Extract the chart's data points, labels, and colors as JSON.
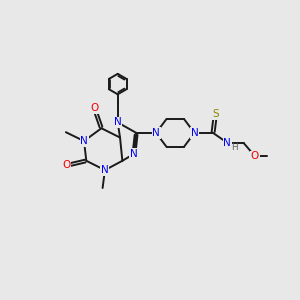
{
  "bg_color": "#e8e8e8",
  "bond_color": "#1a1a1a",
  "N_color": "#0000ee",
  "O_color": "#ee0000",
  "S_color": "#888800",
  "H_color": "#606060",
  "lw": 1.4,
  "fs": 7.5,
  "xlim": [
    0,
    10
  ],
  "ylim": [
    1.0,
    9.5
  ]
}
